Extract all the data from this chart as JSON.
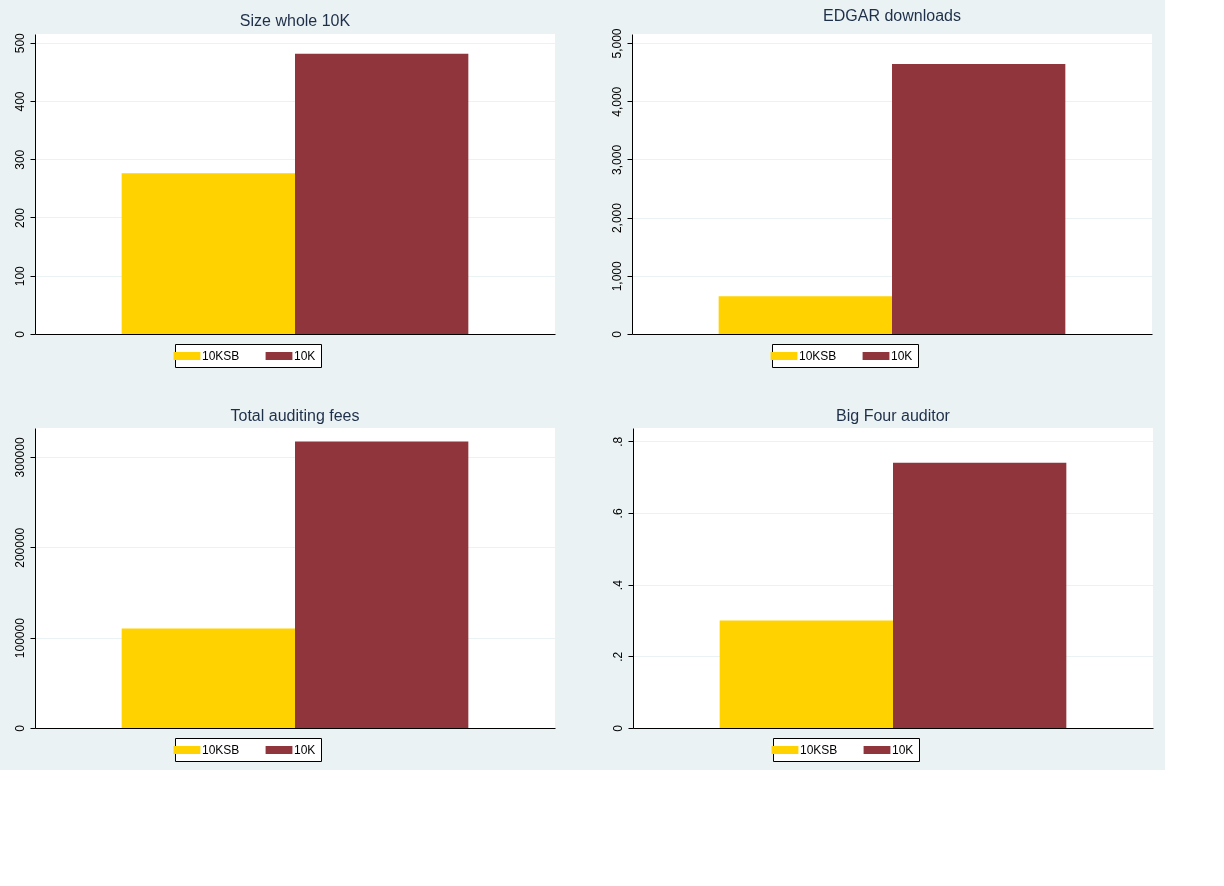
{
  "chart_data": [
    {
      "type": "bar",
      "title": "Size whole 10K",
      "categories": [
        null
      ],
      "ylim": [
        0,
        515
      ],
      "yticks": [
        0,
        100,
        200,
        300,
        400,
        500
      ],
      "grid": "y",
      "legend": "bottom",
      "tick_labels": "y",
      "series": [
        {
          "name": "10KSB",
          "color": "#ffd200",
          "values": [
            276
          ]
        },
        {
          "name": "10K",
          "color": "#90353b",
          "values": [
            481
          ]
        }
      ]
    },
    {
      "type": "bar",
      "title": "EDGAR downloads",
      "categories": [
        null
      ],
      "ylim": [
        0,
        5155
      ],
      "yticks": [
        0,
        {
          "value": 1000,
          "label": "1,000"
        },
        {
          "value": 2000,
          "label": "2,000"
        },
        {
          "value": 3000,
          "label": "3,000"
        },
        {
          "value": 4000,
          "label": "4,000"
        },
        {
          "value": 5000,
          "label": "5,000"
        }
      ],
      "grid": "y",
      "legend": "bottom",
      "tick_labels": "y",
      "series": [
        {
          "name": "10KSB",
          "color": "#ffd200",
          "values": [
            650
          ]
        },
        {
          "name": "10K",
          "color": "#90353b",
          "values": [
            4640
          ]
        }
      ]
    },
    {
      "type": "bar",
      "title": "Total auditing fees",
      "categories": [
        null
      ],
      "ylim": [
        0,
        332000
      ],
      "yticks": [
        0,
        {
          "value": 100000,
          "label": "100000"
        },
        {
          "value": 200000,
          "label": "200000"
        },
        {
          "value": 300000,
          "label": "300000"
        }
      ],
      "grid": "y",
      "legend": "bottom",
      "tick_labels": "y",
      "series": [
        {
          "name": "10KSB",
          "color": "#ffd200",
          "values": [
            110000
          ]
        },
        {
          "name": "10K",
          "color": "#90353b",
          "values": [
            317000
          ]
        }
      ]
    },
    {
      "type": "bar",
      "title": "Big Four auditor",
      "categories": [
        null
      ],
      "ylim": [
        0,
        0.837
      ],
      "yticks": [
        {
          "value": 0,
          "label": "0"
        },
        {
          "value": 0.2,
          "label": ".2"
        },
        {
          "value": 0.4,
          "label": ".4"
        },
        {
          "value": 0.6,
          "label": ".6"
        },
        {
          "value": 0.8,
          "label": ".8"
        }
      ],
      "grid": "y",
      "legend": "bottom",
      "tick_labels": "y",
      "series": [
        {
          "name": "10KSB",
          "color": "#ffd200",
          "values": [
            0.3
          ]
        },
        {
          "name": "10K",
          "color": "#90353b",
          "values": [
            0.74
          ]
        }
      ]
    }
  ]
}
